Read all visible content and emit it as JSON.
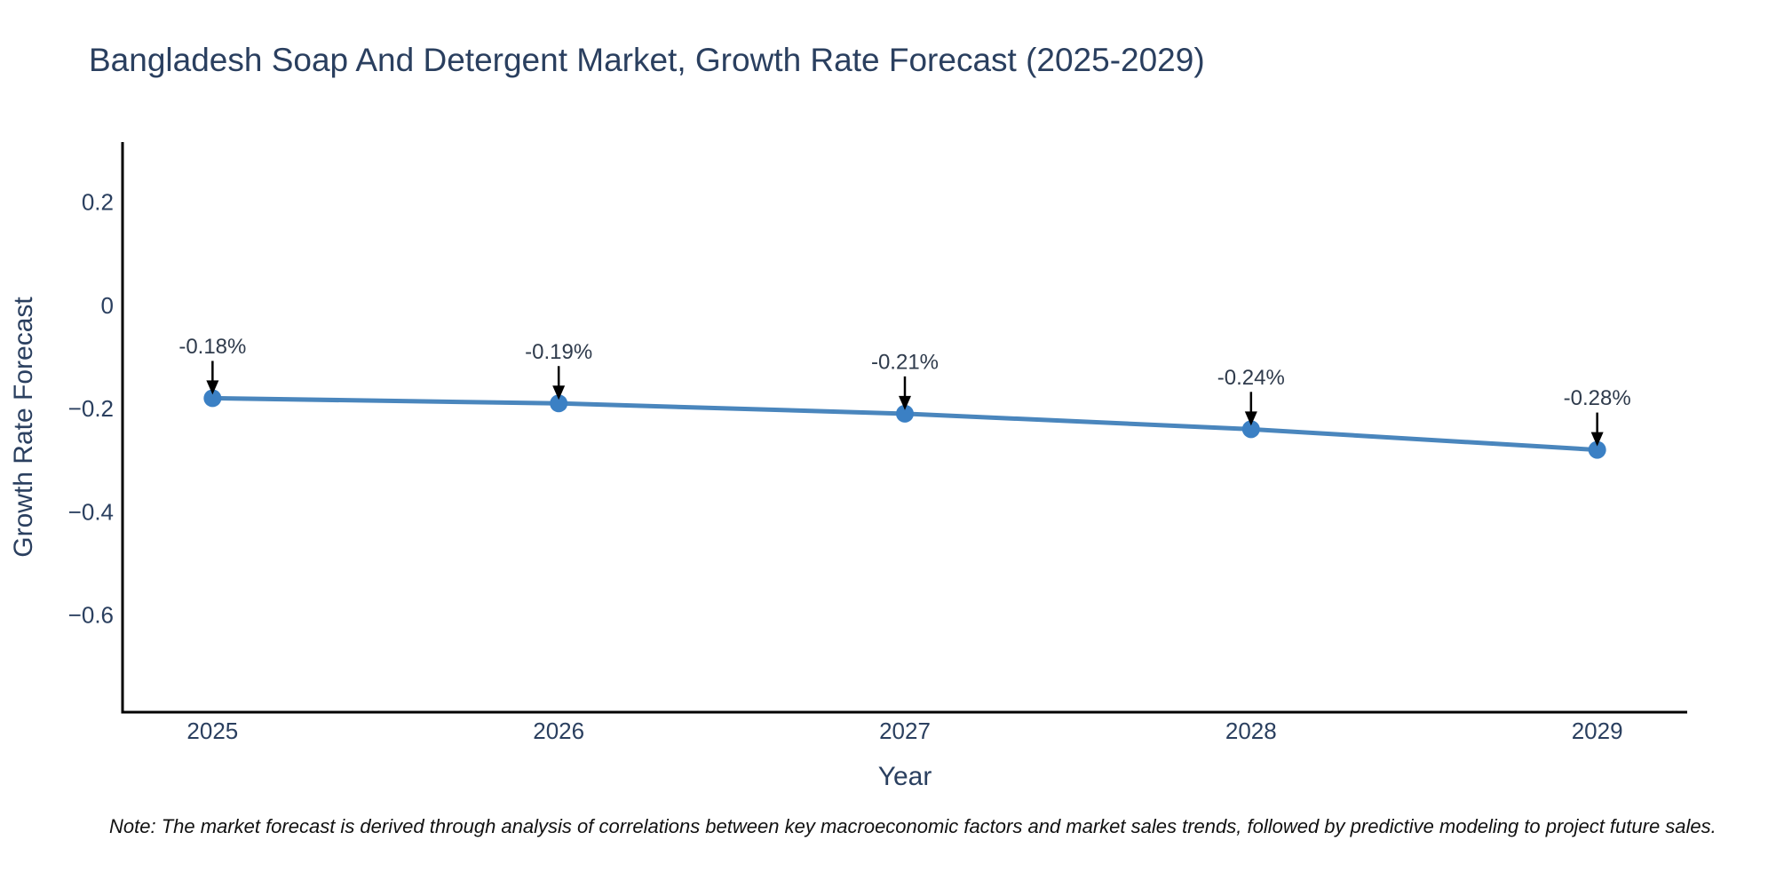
{
  "note": "Note: The market forecast is derived through analysis of correlations between key macroeconomic factors and market sales trends, followed by predictive modeling to project future sales.",
  "chart_data": {
    "type": "line",
    "title": "Bangladesh Soap And Detergent Market, Growth Rate Forecast (2025-2029)",
    "xlabel": "Year",
    "ylabel": "Growth Rate Forecast",
    "x": [
      2025,
      2026,
      2027,
      2028,
      2029
    ],
    "x_tick_labels": [
      "2025",
      "2026",
      "2027",
      "2028",
      "2029"
    ],
    "values": [
      -0.18,
      -0.19,
      -0.21,
      -0.24,
      -0.28
    ],
    "point_labels": [
      "-0.18%",
      "-0.19%",
      "-0.21%",
      "-0.24%",
      "-0.28%"
    ],
    "y_ticks": [
      {
        "value": 0.2,
        "label": "0.2"
      },
      {
        "value": 0,
        "label": "0"
      },
      {
        "value": -0.2,
        "label": "−0.2"
      },
      {
        "value": -0.4,
        "label": "−0.4"
      },
      {
        "value": -0.6,
        "label": "−0.6"
      }
    ],
    "xlim": [
      2024.74,
      2029.26
    ],
    "ylim": [
      -0.788,
      0.316
    ],
    "grid": false,
    "legend": "none",
    "colors": {
      "line": "#4a86bd",
      "marker": "#3b80c4",
      "axis": "#000000",
      "tick_text": "#2a3f5f",
      "annotation_text": "#2f3b4c",
      "arrow": "#000000",
      "title_text": "#2a3f5f"
    }
  }
}
